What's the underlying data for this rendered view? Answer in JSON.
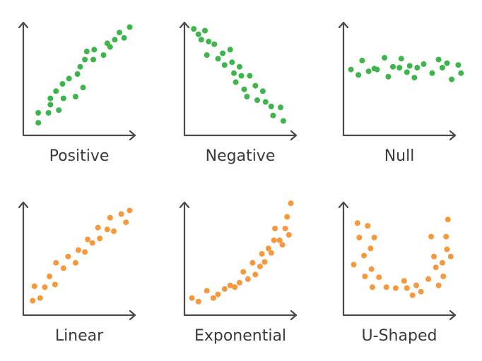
{
  "palette": {
    "axis": "#4a4a4a",
    "label": "#3a3a3a"
  },
  "chart_data": [
    {
      "type": "scatter",
      "title": "Positive",
      "color": "#3cb54a",
      "points": [
        [
          1.6,
          1.4
        ],
        [
          1.6,
          2.5
        ],
        [
          2.7,
          2.5
        ],
        [
          2.9,
          3.4
        ],
        [
          2.9,
          4.1
        ],
        [
          3.5,
          4.9
        ],
        [
          3.8,
          2.8
        ],
        [
          4.2,
          5.7
        ],
        [
          4.3,
          4.1
        ],
        [
          4.9,
          6.3
        ],
        [
          5.6,
          4.3
        ],
        [
          5.8,
          6.8
        ],
        [
          6.1,
          7.6
        ],
        [
          6.4,
          5.3
        ],
        [
          6.6,
          8.4
        ],
        [
          6.8,
          9.3
        ],
        [
          7.5,
          8.4
        ],
        [
          7.6,
          9.5
        ],
        [
          8.6,
          8.9
        ],
        [
          9.0,
          10.2
        ],
        [
          9.3,
          9.8
        ],
        [
          9.8,
          10.6
        ],
        [
          10.3,
          11.4
        ],
        [
          10.8,
          10.8
        ],
        [
          11.4,
          12.0
        ]
      ]
    },
    {
      "type": "scatter",
      "title": "Negative",
      "color": "#3cb54a",
      "points": [
        [
          1.0,
          11.8
        ],
        [
          1.5,
          11.2
        ],
        [
          1.8,
          10.6
        ],
        [
          2.2,
          11.6
        ],
        [
          2.6,
          10.4
        ],
        [
          2.4,
          8.9
        ],
        [
          3.2,
          10.1
        ],
        [
          3.6,
          8.5
        ],
        [
          4.1,
          9.1
        ],
        [
          4.3,
          7.8
        ],
        [
          4.9,
          9.5
        ],
        [
          5.1,
          8.1
        ],
        [
          5.3,
          6.9
        ],
        [
          5.5,
          5.9
        ],
        [
          5.9,
          7.6
        ],
        [
          6.1,
          6.6
        ],
        [
          6.4,
          5.1
        ],
        [
          6.7,
          4.3
        ],
        [
          7.0,
          6.6
        ],
        [
          7.6,
          5.5
        ],
        [
          7.8,
          3.9
        ],
        [
          8.4,
          4.9
        ],
        [
          8.7,
          3.7
        ],
        [
          9.3,
          3.2
        ],
        [
          9.5,
          2.2
        ],
        [
          10.3,
          3.1
        ],
        [
          10.6,
          1.6
        ]
      ]
    },
    {
      "type": "scatter",
      "title": "Null",
      "color": "#3cb54a",
      "points": [
        [
          0.8,
          7.3
        ],
        [
          1.6,
          6.7
        ],
        [
          2.0,
          8.3
        ],
        [
          2.7,
          7.1
        ],
        [
          3.3,
          7.4
        ],
        [
          3.6,
          7.3
        ],
        [
          4.4,
          8.6
        ],
        [
          4.8,
          6.5
        ],
        [
          5.3,
          7.6
        ],
        [
          6.0,
          7.5
        ],
        [
          6.2,
          8.5
        ],
        [
          6.8,
          7.0
        ],
        [
          7.1,
          7.7
        ],
        [
          7.6,
          6.4
        ],
        [
          7.9,
          7.5
        ],
        [
          8.6,
          7.9
        ],
        [
          9.5,
          6.9
        ],
        [
          10.2,
          8.4
        ],
        [
          10.6,
          7.5
        ],
        [
          11.1,
          8.0
        ],
        [
          11.6,
          6.2
        ],
        [
          12.3,
          7.8
        ],
        [
          12.6,
          6.9
        ]
      ]
    },
    {
      "type": "scatter",
      "title": "Linear",
      "color": "#f7983d",
      "points": [
        [
          1.0,
          1.6
        ],
        [
          1.2,
          3.2
        ],
        [
          1.8,
          1.9
        ],
        [
          2.3,
          3.1
        ],
        [
          2.8,
          4.3
        ],
        [
          3.4,
          3.4
        ],
        [
          3.5,
          5.8
        ],
        [
          4.3,
          5.2
        ],
        [
          4.8,
          6.5
        ],
        [
          5.6,
          5.8
        ],
        [
          5.9,
          7.2
        ],
        [
          6.6,
          7.0
        ],
        [
          6.9,
          8.4
        ],
        [
          7.4,
          8.0
        ],
        [
          8.0,
          9.7
        ],
        [
          8.2,
          8.5
        ],
        [
          9.0,
          9.5
        ],
        [
          9.3,
          10.8
        ],
        [
          9.7,
          9.3
        ],
        [
          10.5,
          11.2
        ],
        [
          11.0,
          10.3
        ],
        [
          11.4,
          11.6
        ]
      ]
    },
    {
      "type": "scatter",
      "title": "Exponential",
      "color": "#f7983d",
      "points": [
        [
          0.8,
          1.9
        ],
        [
          1.5,
          1.5
        ],
        [
          2.4,
          2.7
        ],
        [
          3.1,
          1.9
        ],
        [
          3.6,
          2.3
        ],
        [
          4.3,
          2.9
        ],
        [
          4.9,
          3.3
        ],
        [
          5.4,
          3.1
        ],
        [
          5.9,
          3.6
        ],
        [
          6.3,
          4.8
        ],
        [
          6.8,
          4.0
        ],
        [
          7.3,
          5.8
        ],
        [
          7.6,
          4.5
        ],
        [
          8.1,
          5.4
        ],
        [
          8.3,
          6.8
        ],
        [
          8.6,
          5.9
        ],
        [
          9.0,
          7.4
        ],
        [
          9.3,
          6.9
        ],
        [
          9.6,
          8.3
        ],
        [
          9.7,
          9.6
        ],
        [
          10.2,
          8.3
        ],
        [
          10.5,
          7.8
        ],
        [
          10.8,
          9.6
        ],
        [
          11.0,
          10.9
        ],
        [
          11.2,
          8.9
        ],
        [
          11.4,
          12.4
        ]
      ]
    },
    {
      "type": "scatter",
      "title": "U-Shaped",
      "color": "#f7983d",
      "points": [
        [
          1.1,
          5.6
        ],
        [
          1.5,
          10.2
        ],
        [
          1.7,
          8.6
        ],
        [
          2.2,
          6.6
        ],
        [
          2.3,
          4.3
        ],
        [
          2.6,
          9.9
        ],
        [
          2.9,
          7.4
        ],
        [
          3.0,
          5.1
        ],
        [
          3.1,
          3.1
        ],
        [
          3.3,
          8.6
        ],
        [
          3.8,
          4.2
        ],
        [
          4.6,
          3.1
        ],
        [
          5.6,
          3.0
        ],
        [
          6.5,
          3.8
        ],
        [
          6.8,
          3.0
        ],
        [
          7.4,
          2.2
        ],
        [
          7.8,
          3.3
        ],
        [
          8.3,
          2.6
        ],
        [
          9.1,
          4.0
        ],
        [
          9.4,
          8.7
        ],
        [
          9.7,
          6.5
        ],
        [
          9.9,
          5.3
        ],
        [
          10.2,
          3.3
        ],
        [
          10.6,
          5.8
        ],
        [
          10.7,
          4.3
        ],
        [
          11.0,
          8.7
        ],
        [
          11.1,
          7.3
        ],
        [
          11.2,
          10.6
        ],
        [
          11.5,
          6.5
        ]
      ]
    }
  ]
}
